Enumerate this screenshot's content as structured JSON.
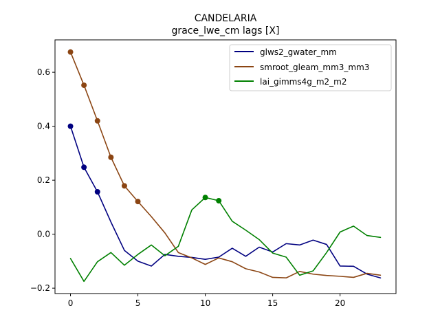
{
  "chart_data": {
    "type": "line",
    "title": "CANDELARIA",
    "subtitle": "grace_lwe_cm lags [X]",
    "xlabel": "",
    "ylabel": "",
    "xlim": [
      -1.15,
      24.15
    ],
    "ylim": [
      -0.22,
      0.72
    ],
    "xticks": [
      0,
      5,
      10,
      15,
      20
    ],
    "yticks": [
      -0.2,
      0.0,
      0.2,
      0.4,
      0.6
    ],
    "ytick_labels": [
      "−0.2",
      "0.0",
      "0.2",
      "0.4",
      "0.6"
    ],
    "legend_position": "top-right",
    "grid": false,
    "x": [
      0,
      1,
      2,
      3,
      4,
      5,
      6,
      7,
      8,
      9,
      10,
      11,
      12,
      13,
      14,
      15,
      16,
      17,
      18,
      19,
      20,
      21,
      22,
      23
    ],
    "series": [
      {
        "name": "glws2_gwater_mm",
        "color": "#000080",
        "values": [
          0.4,
          0.248,
          0.157,
          0.045,
          -0.06,
          -0.1,
          -0.118,
          -0.075,
          -0.082,
          -0.086,
          -0.093,
          -0.085,
          -0.052,
          -0.082,
          -0.048,
          -0.066,
          -0.035,
          -0.04,
          -0.022,
          -0.038,
          -0.118,
          -0.119,
          -0.148,
          -0.162
        ],
        "markers": [
          0,
          1,
          2
        ]
      },
      {
        "name": "smroot_gleam_mm3_mm3",
        "color": "#8B4513",
        "values": [
          0.675,
          0.552,
          0.42,
          0.285,
          0.179,
          0.121,
          0.065,
          0.005,
          -0.068,
          -0.088,
          -0.112,
          -0.088,
          -0.102,
          -0.128,
          -0.14,
          -0.16,
          -0.162,
          -0.138,
          -0.148,
          -0.153,
          -0.156,
          -0.16,
          -0.145,
          -0.152
        ],
        "markers": [
          0,
          1,
          2,
          3,
          4,
          5
        ]
      },
      {
        "name": "lai_gimms4g_m2_m2",
        "color": "#008000",
        "values": [
          -0.09,
          -0.175,
          -0.102,
          -0.068,
          -0.115,
          -0.075,
          -0.04,
          -0.08,
          -0.045,
          0.09,
          0.136,
          0.124,
          0.048,
          0.015,
          -0.02,
          -0.07,
          -0.085,
          -0.152,
          -0.136,
          -0.068,
          0.008,
          0.03,
          -0.005,
          -0.012
        ],
        "markers": [
          10,
          11
        ]
      }
    ]
  }
}
